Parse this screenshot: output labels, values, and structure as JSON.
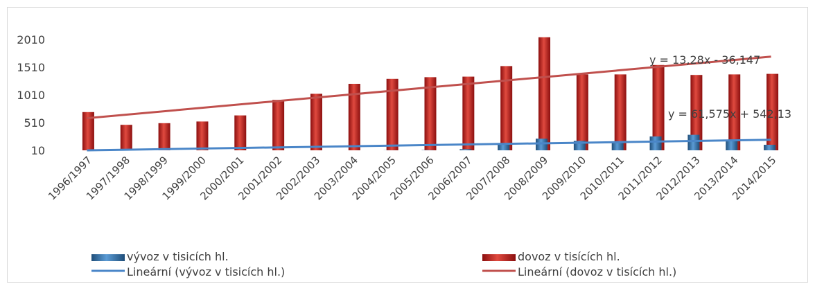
{
  "chart_data": {
    "type": "bar",
    "title": "",
    "xlabel": "",
    "ylabel": "",
    "categories": [
      "1996/1997",
      "1997/1998",
      "1998/1999",
      "1999/2000",
      "2000/2001",
      "2001/2002",
      "2002/2003",
      "2003/2004",
      "2004/2005",
      "2005/2006",
      "2006/2007",
      "2007/2008",
      "2008/2009",
      "2009/2010",
      "2010/2011",
      "2011/2012",
      "2012/2013",
      "2013/2014",
      "2014/2015"
    ],
    "yticks": [
      "10",
      "510",
      "1010",
      "1510",
      "2010"
    ],
    "ylim": [
      10,
      2010
    ],
    "series": [
      {
        "name": "vývoz v tisicích hl.",
        "color": "#2e74b5",
        "values": [
          3,
          3,
          3,
          3,
          3,
          5,
          8,
          10,
          12,
          15,
          30,
          140,
          220,
          180,
          140,
          260,
          290,
          200,
          110
        ]
      },
      {
        "name": "dovoz v tisících hl.",
        "color": "#c00000",
        "values": [
          700,
          470,
          500,
          530,
          640,
          920,
          1030,
          1210,
          1300,
          1330,
          1340,
          1530,
          2050,
          1380,
          1380,
          1550,
          1370,
          1380,
          1390
        ]
      }
    ],
    "trendlines": [
      {
        "name": "Lineární (vývoz v tisicích hl.)",
        "color": "#4a86c8",
        "start": 3,
        "end": 200
      },
      {
        "name": "Lineární (dovoz v tisících hl.)",
        "color": "#c0504d",
        "start": 590,
        "end": 1700
      }
    ],
    "equations": [
      "y = 13,28x - 36,147",
      "y = 61,575x + 542,13"
    ],
    "legend_position": "bottom",
    "grid": false
  }
}
